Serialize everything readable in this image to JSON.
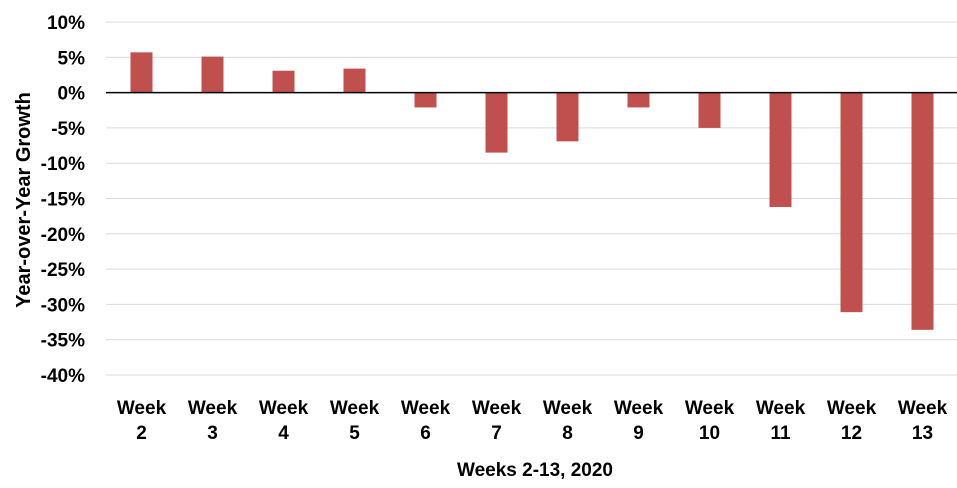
{
  "chart_data": {
    "type": "bar",
    "title": "",
    "xlabel": "Weeks 2-13, 2020",
    "ylabel": "Year-over-Year Growth",
    "categories": [
      [
        "Week",
        "2"
      ],
      [
        "Week",
        "3"
      ],
      [
        "Week",
        "4"
      ],
      [
        "Week",
        "5"
      ],
      [
        "Week",
        "6"
      ],
      [
        "Week",
        "7"
      ],
      [
        "Week",
        "8"
      ],
      [
        "Week",
        "9"
      ],
      [
        "Week",
        "10"
      ],
      [
        "Week",
        "11"
      ],
      [
        "Week",
        "12"
      ],
      [
        "Week",
        "13"
      ]
    ],
    "values": [
      5.7,
      5.1,
      3.1,
      3.4,
      -2.1,
      -8.5,
      -6.9,
      -2.1,
      -5.0,
      -16.2,
      -31.1,
      -33.6
    ],
    "ylim": [
      -40,
      10
    ],
    "yticks": [
      10,
      5,
      0,
      -5,
      -10,
      -15,
      -20,
      -25,
      -30,
      -35,
      -40
    ],
    "ytick_labels": [
      "10%",
      "5%",
      "0%",
      "-5%",
      "-10%",
      "-15%",
      "-20%",
      "-25%",
      "-30%",
      "-35%",
      "-40%"
    ],
    "grid": true,
    "legend": "none",
    "bar_color": "#c0504d",
    "grid_color": "#d9d9d9",
    "zero_line_color": "#000000"
  }
}
